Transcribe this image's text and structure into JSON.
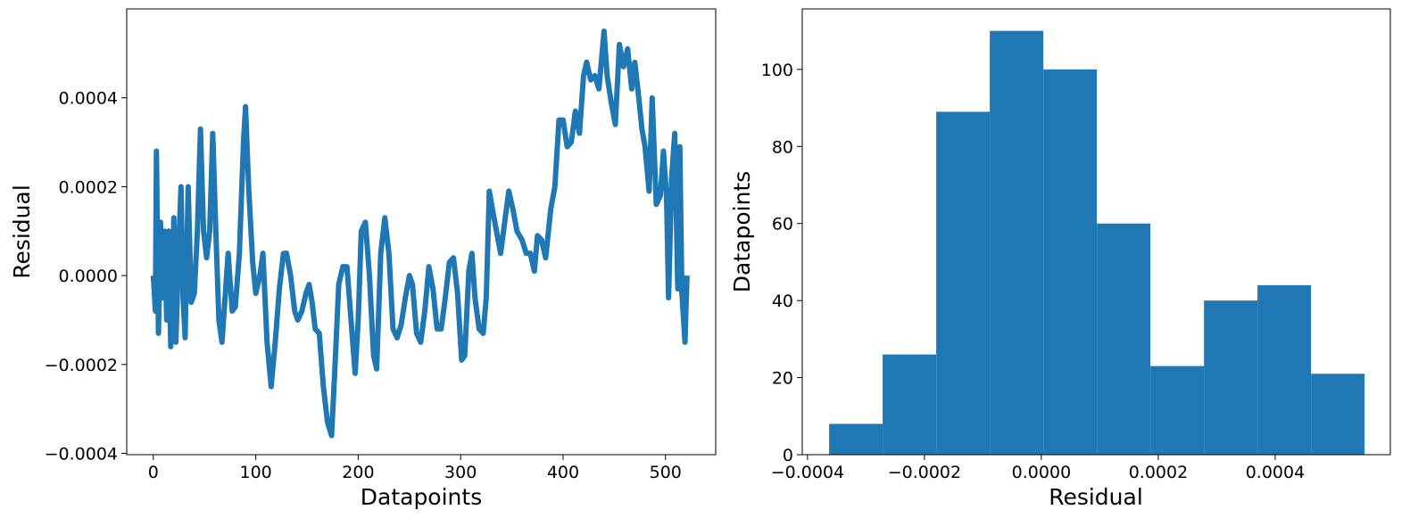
{
  "chart_data": [
    {
      "type": "line",
      "xlabel": "Datapoints",
      "ylabel": "Residual",
      "x": [
        0,
        2,
        3,
        5,
        7,
        9,
        11,
        13,
        15,
        17,
        20,
        22,
        25,
        27,
        29,
        31,
        34,
        37,
        40,
        43,
        46,
        49,
        52,
        55,
        58,
        61,
        64,
        67,
        70,
        73,
        77,
        80,
        84,
        88,
        90,
        93,
        97,
        100,
        104,
        107,
        111,
        115,
        119,
        123,
        127,
        130,
        134,
        138,
        141,
        145,
        149,
        152,
        155,
        158,
        162,
        166,
        170,
        174,
        177,
        181,
        185,
        189,
        193,
        197,
        200,
        203,
        207,
        211,
        215,
        218,
        222,
        226,
        230,
        234,
        238,
        242,
        246,
        250,
        253,
        257,
        261,
        265,
        269,
        273,
        277,
        281,
        285,
        289,
        293,
        297,
        301,
        304,
        308,
        311,
        314,
        318,
        322,
        325,
        328,
        331,
        335,
        339,
        343,
        347,
        351,
        355,
        360,
        364,
        368,
        372,
        375,
        379,
        383,
        388,
        392,
        396,
        400,
        404,
        408,
        412,
        416,
        420,
        423,
        427,
        431,
        435,
        440,
        443,
        447,
        451,
        455,
        459,
        463,
        467,
        470,
        473,
        477,
        480,
        484,
        487,
        491,
        495,
        498,
        501,
        503,
        506,
        509,
        512,
        514,
        516,
        519,
        521
      ],
      "series": [
        {
          "color": "#1f77b4",
          "values": [
            0,
            -8e-05,
            0.00028,
            -0.00013,
            0.00012,
            -5e-05,
            0.0001,
            -0.0001,
            0.0001,
            -0.00016,
            0.00013,
            -0.00015,
            8e-05,
            0.0002,
            -5e-05,
            -0.00014,
            0.0002,
            -6e-05,
            -4e-05,
            0.0001,
            0.00033,
            0.0001,
            4e-05,
            0.0001,
            0.00032,
            0.0001,
            -0.0001,
            -0.00015,
            -5e-05,
            5e-05,
            -8e-05,
            -7e-05,
            5e-05,
            0.0003,
            0.00038,
            0.0002,
            3e-05,
            -4e-05,
            0,
            5e-05,
            -0.00015,
            -0.00025,
            -0.00015,
            -3e-05,
            5e-05,
            5e-05,
            0,
            -8e-05,
            -0.0001,
            -8e-05,
            -4e-05,
            -2e-05,
            -6e-05,
            -0.00012,
            -0.00013,
            -0.00025,
            -0.00033,
            -0.00036,
            -0.00022,
            -2e-05,
            2e-05,
            2e-05,
            -0.0001,
            -0.00022,
            -0.0001,
            0.0001,
            0.00012,
            0,
            -0.00018,
            -0.00021,
            5e-05,
            0.00013,
            5e-05,
            -0.00012,
            -0.00014,
            -0.00011,
            -5e-05,
            0,
            -2e-05,
            -0.00013,
            -0.00015,
            -8e-05,
            2e-05,
            -3e-05,
            -0.00012,
            -0.00012,
            -5e-05,
            3e-05,
            4e-05,
            -4e-05,
            -0.00019,
            -0.00018,
            1e-05,
            5e-05,
            -5e-05,
            -0.00012,
            -0.00013,
            -5e-05,
            0.00019,
            0.00015,
            0.0001,
            5e-05,
            0.00012,
            0.00019,
            0.00015,
            0.0001,
            8e-05,
            5e-05,
            5e-05,
            1e-05,
            9e-05,
            8e-05,
            4e-05,
            0.00015,
            0.0002,
            0.00035,
            0.00035,
            0.00029,
            0.0003,
            0.00037,
            0.00032,
            0.00045,
            0.00048,
            0.00044,
            0.00045,
            0.00042,
            0.00055,
            0.00045,
            0.00039,
            0.00034,
            0.00052,
            0.00047,
            0.00051,
            0.00042,
            0.00048,
            0.00042,
            0.00033,
            0.00029,
            0.00019,
            0.0004,
            0.00016,
            0.00018,
            0.00028,
            0.00018,
            -5e-05,
            0.00022,
            0.00032,
            -3e-05,
            0.00029,
            -4e-05,
            -0.00015,
            0
          ]
        }
      ],
      "xlim": [
        -26,
        549
      ],
      "xticks": [
        0,
        100,
        200,
        300,
        400,
        500
      ],
      "ylim": [
        -0.000403,
        0.0006
      ],
      "yticks": [
        {
          "value": -0.0004,
          "label": "−0.0004"
        },
        {
          "value": -0.0002,
          "label": "−0.0002"
        },
        {
          "value": 0,
          "label": "0.0000"
        },
        0.0002,
        0.0004
      ]
    },
    {
      "type": "histogram",
      "xlabel": "Residual",
      "ylabel": "Datapoints",
      "color": "#1f77b4",
      "bins": [
        -0.000363,
        -0.0002714,
        -0.0001798,
        -8.82e-05,
        3.4e-06,
        9.5e-05,
        0.0001866,
        0.0002782,
        0.0003698,
        0.0004614,
        0.000553
      ],
      "counts": [
        8,
        26,
        89,
        110,
        100,
        60,
        23,
        40,
        44,
        21
      ],
      "xlim": [
        -0.000409,
        0.000597
      ],
      "xticks": [
        {
          "value": -0.0004,
          "label": "−0.0004"
        },
        {
          "value": -0.0002,
          "label": "−0.0002"
        },
        {
          "value": 0,
          "label": "0.0000"
        },
        0.0002,
        0.0004
      ],
      "ylim": [
        0,
        115.7
      ],
      "yticks": [
        0,
        20,
        40,
        60,
        80,
        100
      ]
    }
  ]
}
